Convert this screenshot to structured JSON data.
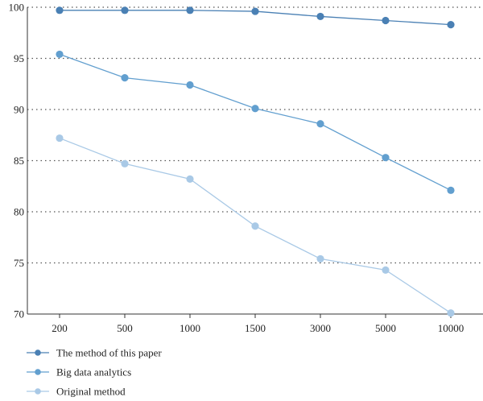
{
  "chart_data": {
    "type": "line",
    "categories": [
      "200",
      "500",
      "1000",
      "1500",
      "3000",
      "5000",
      "10000"
    ],
    "ylim": [
      70,
      100
    ],
    "yticks": [
      70,
      75,
      80,
      85,
      90,
      95,
      100
    ],
    "grid": "horizontal-dotted",
    "legend_position": "bottom-left",
    "series": [
      {
        "name": "The method of this paper",
        "color": "#4a80b4",
        "values": [
          99.7,
          99.7,
          99.7,
          99.6,
          99.1,
          98.7,
          98.3
        ]
      },
      {
        "name": "Big data analytics",
        "color": "#629fcf",
        "values": [
          95.4,
          93.1,
          92.4,
          90.1,
          88.6,
          85.3,
          82.1
        ]
      },
      {
        "name": "Original method",
        "color": "#a9c9e6",
        "values": [
          87.2,
          84.7,
          83.2,
          78.6,
          75.4,
          74.3,
          70.1
        ]
      }
    ]
  }
}
